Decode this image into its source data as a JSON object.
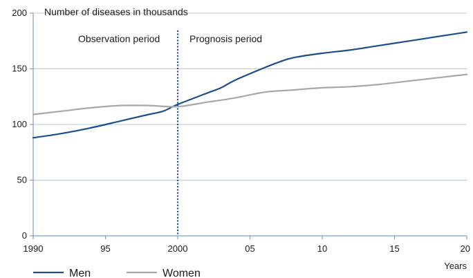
{
  "chart_data": {
    "type": "line",
    "title": "Number of diseases in thousands",
    "xlabel": "Years",
    "ylabel": "",
    "ylim": [
      0,
      200
    ],
    "xlim": [
      1990,
      2020
    ],
    "yticks": [
      0,
      50,
      100,
      150,
      200
    ],
    "ytick_labels": [
      "0",
      "50",
      "100",
      "150",
      "200"
    ],
    "xticks": [
      1990,
      1995,
      2000,
      2005,
      2010,
      2015,
      2020
    ],
    "xtick_labels": [
      "1990",
      "95",
      "2000",
      "05",
      "10",
      "15",
      "20"
    ],
    "grid": "horizontal",
    "divider_x": 2000,
    "annotations": {
      "left": "Observation period",
      "right": "Prognosis period"
    },
    "legend_position": "bottom-left",
    "colors": {
      "men": "#1a4e8c",
      "women": "#a8a8a8",
      "grid": "#b9c9d8",
      "axis": "#7aa0c4",
      "divider": "#1a4e8c"
    },
    "series": [
      {
        "name": "Men",
        "x": [
          1990,
          1992,
          1994,
          1996,
          1998,
          1999,
          2000,
          2002,
          2003,
          2004,
          2006,
          2007,
          2008,
          2010,
          2012,
          2014,
          2016,
          2018,
          2020
        ],
        "values": [
          88,
          92,
          97,
          103,
          109,
          112,
          118,
          128,
          133,
          140,
          151,
          156,
          160,
          164,
          167,
          171,
          175,
          179,
          183
        ]
      },
      {
        "name": "Women",
        "x": [
          1990,
          1992,
          1994,
          1996,
          1998,
          2000,
          2002,
          2004,
          2006,
          2008,
          2010,
          2012,
          2014,
          2016,
          2018,
          2020
        ],
        "values": [
          109,
          112,
          115,
          117,
          117,
          116,
          120,
          124,
          129,
          131,
          133,
          134,
          136,
          139,
          142,
          145
        ]
      }
    ]
  }
}
